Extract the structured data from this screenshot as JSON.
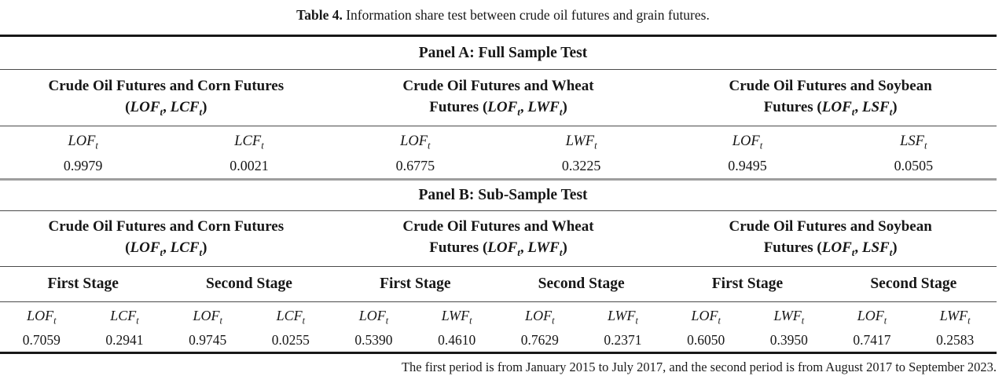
{
  "caption": {
    "label": "Table 4.",
    "text": " Information share test between crude oil futures and grain futures."
  },
  "panelA": {
    "title": "Panel A: Full Sample Test",
    "groups": [
      {
        "line1": "Crude Oil Futures and Corn Futures",
        "line2_prefix": "",
        "vars": [
          "LOF_t",
          "LCF_t"
        ]
      },
      {
        "line1": "Crude Oil Futures and Wheat",
        "line2_prefix": "Futures",
        "vars": [
          "LOF_t",
          "LWF_t"
        ]
      },
      {
        "line1": "Crude Oil Futures and Soybean",
        "line2_prefix": "Futures",
        "vars": [
          "LOF_t",
          "LSF_t"
        ]
      }
    ],
    "cells": [
      {
        "var": "LOF_t",
        "value": "0.9979"
      },
      {
        "var": "LCF_t",
        "value": "0.0021"
      },
      {
        "var": "LOF_t",
        "value": "0.6775"
      },
      {
        "var": "LWF_t",
        "value": "0.3225"
      },
      {
        "var": "LOF_t",
        "value": "0.9495"
      },
      {
        "var": "LSF_t",
        "value": "0.0505"
      }
    ]
  },
  "panelB": {
    "title": "Panel B: Sub-Sample Test",
    "groups": [
      {
        "line1": "Crude Oil Futures and Corn Futures",
        "line2_prefix": "",
        "vars": [
          "LOF_t",
          "LCF_t"
        ]
      },
      {
        "line1": "Crude Oil Futures and Wheat",
        "line2_prefix": "Futures",
        "vars": [
          "LOF_t",
          "LWF_t"
        ]
      },
      {
        "line1": "Crude Oil Futures and Soybean",
        "line2_prefix": "Futures",
        "vars": [
          "LOF_t",
          "LSF_t"
        ]
      }
    ],
    "stages": [
      "First Stage",
      "Second Stage",
      "First Stage",
      "Second Stage",
      "First Stage",
      "Second Stage"
    ],
    "cells": [
      {
        "var": "LOF_t",
        "value": "0.7059"
      },
      {
        "var": "LCF_t",
        "value": "0.2941"
      },
      {
        "var": "LOF_t",
        "value": "0.9745"
      },
      {
        "var": "LCF_t",
        "value": "0.0255"
      },
      {
        "var": "LOF_t",
        "value": "0.5390"
      },
      {
        "var": "LWF_t",
        "value": "0.4610"
      },
      {
        "var": "LOF_t",
        "value": "0.7629"
      },
      {
        "var": "LWF_t",
        "value": "0.2371"
      },
      {
        "var": "LOF_t",
        "value": "0.6050"
      },
      {
        "var": "LWF_t",
        "value": "0.3950"
      },
      {
        "var": "LOF_t",
        "value": "0.7417"
      },
      {
        "var": "LWF_t",
        "value": "0.2583"
      }
    ]
  },
  "footnote": "The first period is from January 2015 to July 2017, and the second period is from August 2017 to September 2023."
}
